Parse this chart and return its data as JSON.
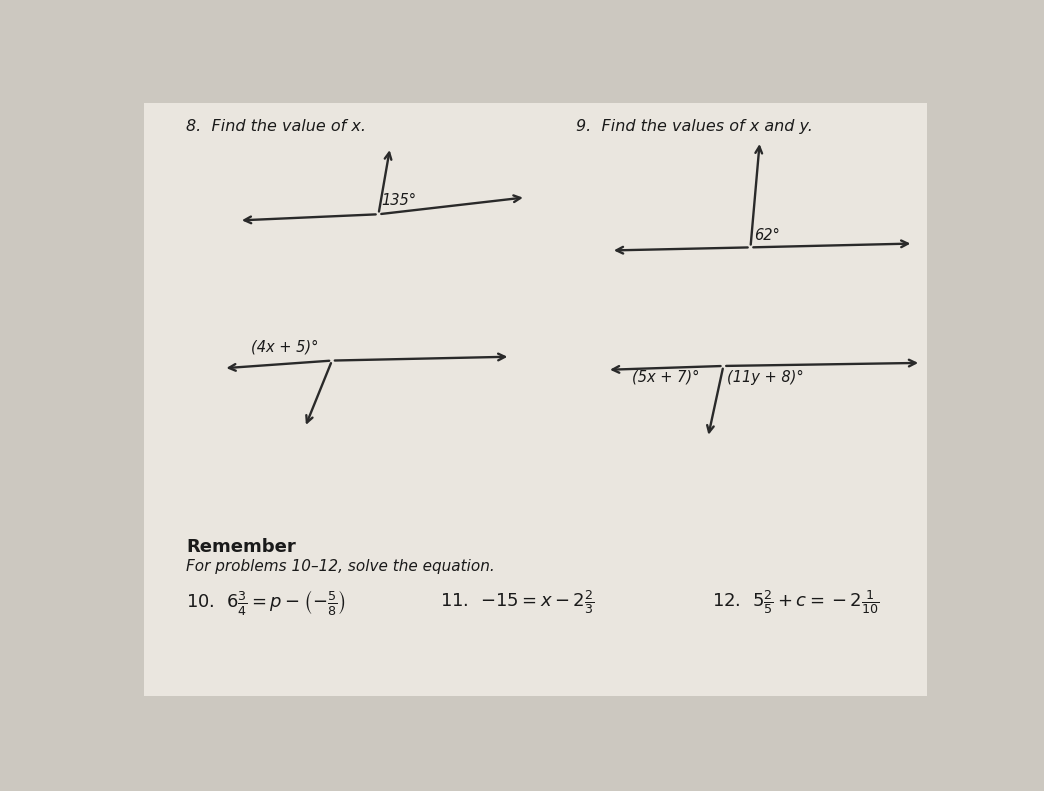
{
  "bg_color": "#ccc8c0",
  "page_bg": "#eae6df",
  "title8": "8.  Find the value of x.",
  "title9": "9.  Find the values of x and y.",
  "remember_title": "Remember",
  "remember_sub": "For problems 10–12, solve the equation.",
  "line_color": "#2a2a2a",
  "text_color": "#1a1a1a",
  "label_135": "135°",
  "label_4x5": "(4x + 5)°",
  "label_62": "62°",
  "label_5x7": "(5x + 7)°",
  "label_11y8": "(11y + 8)°"
}
